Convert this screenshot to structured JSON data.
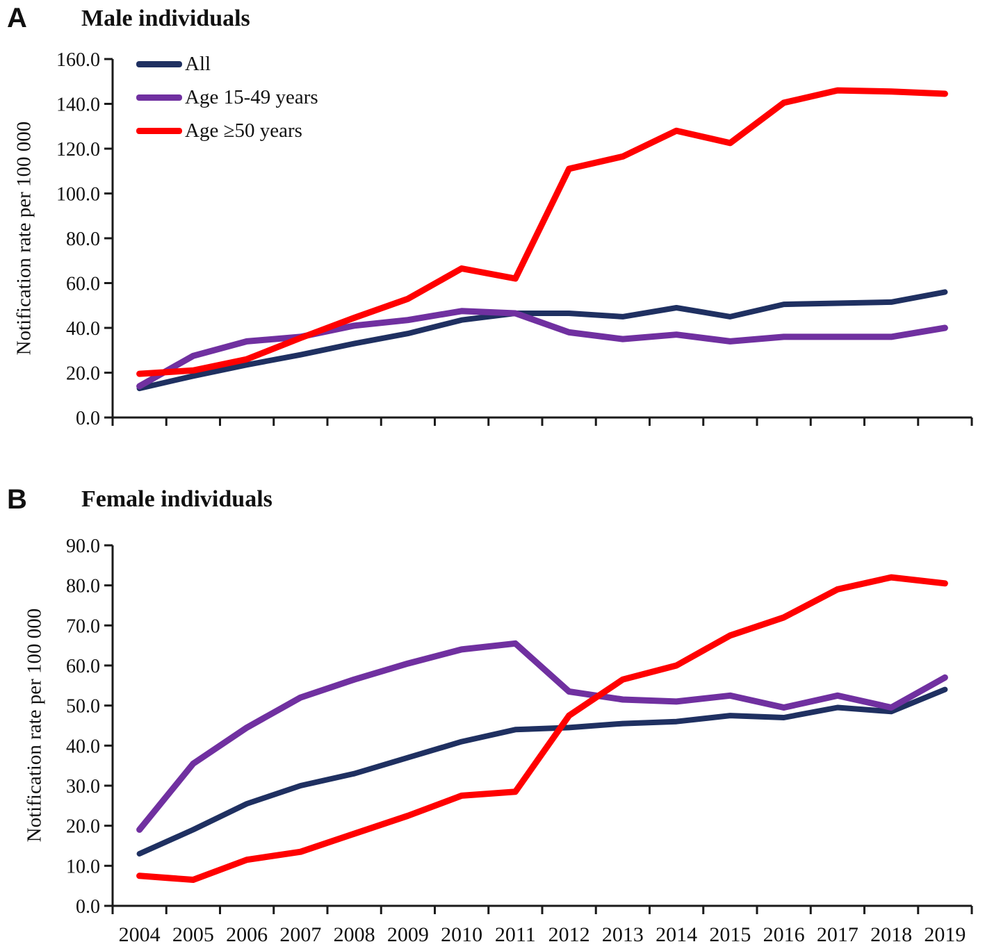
{
  "figure": {
    "background": "#ffffff",
    "axis_color": "#1a1a1a"
  },
  "chart_data": [
    {
      "type": "line",
      "panel_label": "A",
      "title": "Male individuals",
      "ylabel": "Notification rate per 100 000",
      "xlabel": "",
      "x": [
        "2004",
        "2005",
        "2006",
        "2007",
        "2008",
        "2009",
        "2010",
        "2011",
        "2012",
        "2013",
        "2014",
        "2015",
        "2016",
        "2017",
        "2018",
        "2019"
      ],
      "ylim": [
        0,
        160
      ],
      "ytick_step": 20,
      "ytick_format": "one_decimal",
      "grid": false,
      "show_x_labels": false,
      "legend_position": "top-left-inside",
      "show_legend": true,
      "series": [
        {
          "name": "All",
          "color": "#1f3061",
          "values": [
            13,
            18.5,
            23.5,
            28,
            33,
            37.5,
            43.5,
            46.5,
            46.5,
            45,
            49,
            45,
            50.5,
            51,
            51.5,
            56
          ]
        },
        {
          "name": "Age 15-49 years",
          "color": "#7030a0",
          "values": [
            14,
            27.5,
            34,
            36,
            41,
            43.5,
            47.5,
            46.5,
            38,
            35,
            37,
            34,
            36,
            36,
            36,
            40
          ]
        },
        {
          "name": "Age ≥50 years",
          "color": "#ff0000",
          "values": [
            19.5,
            21,
            26,
            35.5,
            44.5,
            53,
            66.5,
            62,
            111,
            116.5,
            128,
            122.5,
            140.5,
            146,
            145.5,
            144.5
          ]
        }
      ]
    },
    {
      "type": "line",
      "panel_label": "B",
      "title": "Female individuals",
      "ylabel": "Notification rate per 100 000",
      "xlabel": "",
      "x": [
        "2004",
        "2005",
        "2006",
        "2007",
        "2008",
        "2009",
        "2010",
        "2011",
        "2012",
        "2013",
        "2014",
        "2015",
        "2016",
        "2017",
        "2018",
        "2019"
      ],
      "ylim": [
        0,
        90
      ],
      "ytick_step": 10,
      "ytick_format": "one_decimal",
      "grid": false,
      "show_x_labels": true,
      "legend_position": "none",
      "show_legend": false,
      "series": [
        {
          "name": "All",
          "color": "#1f3061",
          "values": [
            13,
            19,
            25.5,
            30,
            33,
            37,
            41,
            44,
            44.5,
            45.5,
            46,
            47.5,
            47,
            49.5,
            48.5,
            54
          ]
        },
        {
          "name": "Age 15-49 years",
          "color": "#7030a0",
          "values": [
            19,
            35.5,
            44.5,
            52,
            56.5,
            60.5,
            64,
            65.5,
            53.5,
            51.5,
            51,
            52.5,
            49.5,
            52.5,
            49.5,
            57
          ]
        },
        {
          "name": "Age ≥50 years",
          "color": "#ff0000",
          "values": [
            7.5,
            6.5,
            11.5,
            13.5,
            18,
            22.5,
            27.5,
            28.5,
            47.5,
            56.5,
            60,
            67.5,
            72,
            79,
            82,
            80.5
          ]
        }
      ]
    }
  ]
}
